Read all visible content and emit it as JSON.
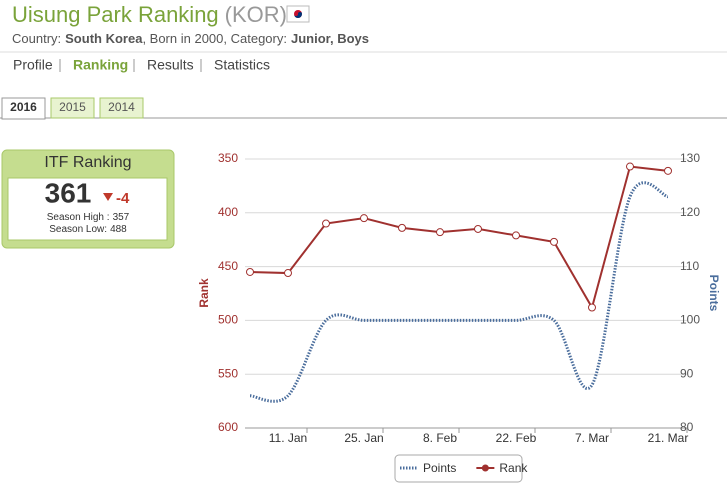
{
  "header": {
    "title": "Uisung Park Ranking",
    "country_code": "(KOR)",
    "details": [
      "Country:",
      "South Korea",
      ", Born in 2000, Category:",
      "Junior, Boys"
    ]
  },
  "nav": {
    "items": [
      "Profile",
      "Ranking",
      "Results",
      "Statistics"
    ],
    "active": 1
  },
  "tabs": {
    "items": [
      "2016",
      "2015",
      "2014"
    ],
    "active": 0
  },
  "ranking_card": {
    "title": "ITF Ranking",
    "rank": 361,
    "change": -4,
    "season_high_label": "Season High :",
    "season_high": 357,
    "season_low_label": "Season Low:",
    "season_low": 488
  },
  "chart_data": {
    "type": "line",
    "categories": [
      null,
      "11. Jan",
      null,
      "25. Jan",
      null,
      "8. Feb",
      null,
      "22. Feb",
      null,
      "7. Mar",
      null,
      "21. Mar"
    ],
    "series": [
      {
        "name": "Points",
        "color": "#4a6d9c",
        "axis": "y2",
        "dash": "dotted",
        "curve": "smooth",
        "values": [
          86,
          86,
          100,
          100,
          100,
          100,
          100,
          100,
          100,
          88,
          123,
          123
        ]
      },
      {
        "name": "Rank",
        "color": "#a0312f",
        "markers": true,
        "values": [
          455,
          456,
          410,
          405,
          414,
          418,
          415,
          421,
          427,
          488,
          357,
          361
        ]
      }
    ],
    "ylabel": "Rank",
    "ylim": [
      350,
      600
    ],
    "y_reversed": true,
    "yticks": [
      350,
      400,
      450,
      500,
      550,
      600
    ],
    "y2label": "Points",
    "y2lim": [
      80,
      130
    ],
    "y2ticks": [
      80,
      90,
      100,
      110,
      120,
      130
    ],
    "grid": true,
    "legend": "bottom"
  }
}
